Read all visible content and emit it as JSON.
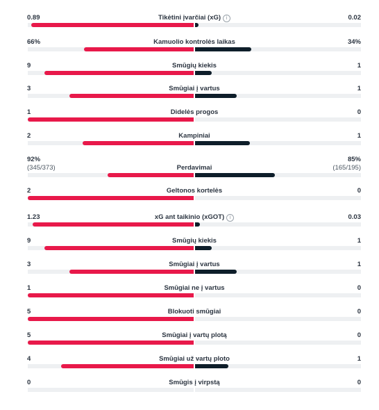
{
  "colors": {
    "home": "#e8194a",
    "away": "#0e1e2a",
    "track": "#eef0f2"
  },
  "info_icon_glyph": "i",
  "stats": [
    {
      "label": "Tikėtini įvarčiai (xG)",
      "home": "0.89",
      "away": "0.02",
      "home_share": 0.98,
      "away_share": 0.02,
      "info": true
    },
    {
      "label": "Kamuolio kontrolės laikas",
      "home": "66%",
      "away": "34%",
      "home_share": 0.66,
      "away_share": 0.34
    },
    {
      "label": "Smūgių kiekis",
      "home": "9",
      "away": "1",
      "home_share": 0.9,
      "away_share": 0.1
    },
    {
      "label": "Smūgiai į vartus",
      "home": "3",
      "away": "1",
      "home_share": 0.75,
      "away_share": 0.25
    },
    {
      "label": "Didelės progos",
      "home": "1",
      "away": "0",
      "home_share": 1.0,
      "away_share": 0.0
    },
    {
      "label": "Kampiniai",
      "home": "2",
      "away": "1",
      "home_share": 0.67,
      "away_share": 0.33
    },
    {
      "label": "Perdavimai",
      "home": "92%",
      "away": "85%",
      "home_sub": "(345/373)",
      "away_sub": "(165/195)",
      "home_share": 0.52,
      "away_share": 0.48
    },
    {
      "label": "Geltonos kortelės",
      "home": "2",
      "away": "0",
      "home_share": 1.0,
      "away_share": 0.0
    },
    {
      "label": "xG ant taikinio (xGOT)",
      "home": "1.23",
      "away": "0.03",
      "home_share": 0.97,
      "away_share": 0.03,
      "info": true
    },
    {
      "label": "Smūgių kiekis",
      "home": "9",
      "away": "1",
      "home_share": 0.9,
      "away_share": 0.1
    },
    {
      "label": "Smūgiai į vartus",
      "home": "3",
      "away": "1",
      "home_share": 0.75,
      "away_share": 0.25
    },
    {
      "label": "Smūgiai ne į vartus",
      "home": "1",
      "away": "0",
      "home_share": 1.0,
      "away_share": 0.0
    },
    {
      "label": "Blokuoti smūgiai",
      "home": "5",
      "away": "0",
      "home_share": 1.0,
      "away_share": 0.0
    },
    {
      "label": "Smūgiai į vartų plotą",
      "home": "5",
      "away": "0",
      "home_share": 1.0,
      "away_share": 0.0
    },
    {
      "label": "Smūgiai už vartų ploto",
      "home": "4",
      "away": "1",
      "home_share": 0.8,
      "away_share": 0.2
    },
    {
      "label": "Smūgis į virpstą",
      "home": "0",
      "away": "0",
      "home_share": 0.0,
      "away_share": 0.0
    }
  ]
}
